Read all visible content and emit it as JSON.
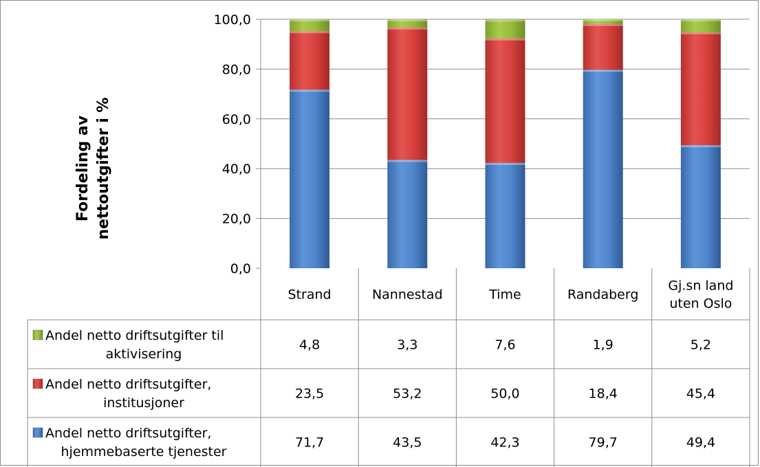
{
  "chart_data": {
    "type": "bar",
    "stacked": true,
    "categories": [
      "Strand",
      "Nannestad",
      "Time",
      "Randaberg",
      "Gj.sn land uten Oslo"
    ],
    "category_lines": [
      [
        "Strand"
      ],
      [
        "Nannestad"
      ],
      [
        "Time"
      ],
      [
        "Randaberg"
      ],
      [
        "Gj.sn land",
        "uten Oslo"
      ]
    ],
    "ylabel_lines": [
      "Fordeling av",
      "nettoutgifter i %"
    ],
    "ylim": [
      0,
      100
    ],
    "yticks": [
      "0,0",
      "20,0",
      "40,0",
      "60,0",
      "80,0",
      "100,0"
    ],
    "grid": true,
    "legend_placement": "data-table",
    "series": [
      {
        "name": "Andel netto driftsutgifter, hjemmebaserte tjenester",
        "name_lines": [
          "Andel netto driftsutgifter,",
          "hjemmebaserte tjenester"
        ],
        "color": "#4a7ebb",
        "values": [
          71.7,
          43.5,
          42.3,
          79.7,
          49.4
        ],
        "labels": [
          "71,7",
          "43,5",
          "42,3",
          "79,7",
          "49,4"
        ]
      },
      {
        "name": "Andel netto driftsutgifter, institusjoner",
        "name_lines": [
          "Andel netto driftsutgifter,",
          "institusjoner"
        ],
        "color": "#d9403c",
        "values": [
          23.5,
          53.2,
          50.0,
          18.4,
          45.4
        ],
        "labels": [
          "23,5",
          "53,2",
          "50,0",
          "18,4",
          "45,4"
        ]
      },
      {
        "name": "Andel netto driftsutgifter til aktivisering",
        "name_lines": [
          "Andel netto driftsutgifter til",
          "aktivisering"
        ],
        "color": "#98bb3c",
        "values": [
          4.8,
          3.3,
          7.6,
          1.9,
          5.2
        ],
        "labels": [
          "4,8",
          "3,3",
          "7,6",
          "1,9",
          "5,2"
        ]
      }
    ]
  }
}
